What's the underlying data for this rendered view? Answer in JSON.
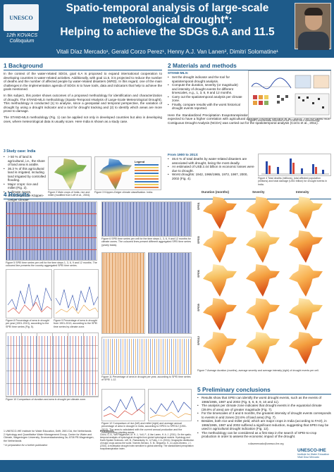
{
  "header": {
    "logo_text": "UNESCO",
    "colloquium": "12th KOVACS Colloquium",
    "title_line1": "Spatio-temporal analysis of large-scale",
    "title_line2": "meteorological drought*:",
    "title_line3": "Helping to achieve the SDGs 6.A and 11.5",
    "authors": "Vitali Díaz Mercado¹, Gerald Corzo Perez¹, Henny A.J. Van Lanen², Dimitri Solomatine¹"
  },
  "background": {
    "heading": "1 Background",
    "p1": "In the context of the water-related SDGs, goal 6.A is proposed to expand international cooperation to developing countries in water-related activities. Additionally, with goal 11.5, it is projected to reduce the number of deaths and the number of affected people by water-related disasters (WRD). In this regard, one of the main challenges in the implementation agenda of SDGs is to have tools, data and indicators that help to achieve the goals mentioned.",
    "p2": "In this subject, this poster shows outcomes of a proposed methodology for identification and characterization of drought. The STAND-MLS methodology (Spatio-Temporal ANalysis of Large-Scale Meteorological Drought). This methodology is conducted (1) to analyse, since a geospatial and temporal perspective, the variation of drought by using a drought indicator and a tool for drought tracking and (2) to identify which areas are more prone to damage.",
    "p3": "The STAND-MLS methodology (Fig. 1) can be applied not only in developed countries but also in developing ones, where meteorological data is usually scare. Here India is shown as a study case."
  },
  "study_case": {
    "heading": "3 Study case: India",
    "bullets": [
      "> 50 % of land is agricultural, i.e., the share of land area is arable.",
      "36.3 % of this agricultural land is irrigated, including land irrigated by controlled flooding.",
      "Major crops: rice and millet (Fig. 2).",
      "5 climate zones, according to the Köppen-Geiger climate classification (Fig. 3)."
    ],
    "fig2_cap": "Figure 2 Main crops of India, rice and millet (modified from Leff et al., 2004).",
    "fig3_cap": "Figure 3 Köppen-Geiger climate classification. India.",
    "legend_title": "Legend"
  },
  "methods": {
    "heading": "2 Materials and methods",
    "stand_label": "STAND-MLS:",
    "bullets": [
      "Set the drought indicator and the tool for spatiotemporal drought analysis.",
      "Compute the duration, severity (or magnitude) and intensity of drought events for different timescales, e.g., 1, 3, 6, 9 and 12 months.",
      "Carry out the spatiotemporal analysis per climate zone.",
      "Finally, compare results with the worst historical drought events reported."
    ],
    "fig1_cap": "Figure 1 A schematic overview of the STAND-MLS methodology.",
    "para": "Here the Standardized Precipitation Evapotranspiration Index (SPEI) was used as drought indicator since it is expected to have a higher correlation with agricultural damage (Vicente-Serrano et al., 2010). The so-called Non-Contiguous Drought Analysis (NCDA) was carried out for the spatiotemporal analysis (Corzo et al., 2011).",
    "from_heading": "From 1900 to 2013:",
    "from_bullets": [
      "46.6 % of total deaths by water-related disasters are associated with drought, being the most deadly.",
      "An estimated of US$ 2.44 billion in economic losses were due to drought.",
      "Worst droughts: 1942, 1966/1965, 1972, 1987, 2000, 2002 (Fig. 4)."
    ],
    "fig4_cap": "Figure 4 Total deaths (millions), total affected population (millions) and total damage (USD billion) for drought events in India."
  },
  "results": {
    "heading": "4 Results",
    "col_duration": "Duration (months)",
    "col_severity": "Severity",
    "col_intensity": "Intensity",
    "rows": [
      "SPEI1",
      "SPEI3",
      "SPEI6",
      "SPEI9",
      "SPEI12"
    ],
    "fig5_cap": "Figure 5 SPEI time series per cell for the time steps 1, 3, 6, 9 and 12 months. The coloured line presents the country aggregated SPEI time series.",
    "fig6_cap": "Figure 6 SPEI time series per cell for the time steps 1, 3, 6, 9 and 12 months for climate zones. The coloured lines present different aggregated SPEI time series (yearly basis).",
    "fig7_cap": "Figure 7 Average duration (months), average severity and average intensity (right) of drought events per cell.",
    "fig8_cap": "Figure 8 Percentage of area in drought per year (1901-2013), according to the SPEI time series (Fig. 5).",
    "fig9_cap": "Figure 9 Percentage of area in drought from 1901-2013, according to the SPEI time series by climate zone.",
    "fig10_cap": "Figure 10 Comparison of duration and area in drought per climate zone.",
    "fig11_cap": "Figure 11 Percentage of area in drought per year, according to SPEI time series of SPEI 1-12.",
    "fig12_cap": "Figure 12 Comparison of rice (left) and millet (right) and average annual percentage of area in drought in India, according to SPEI1 to SPEI12 (1901-2013). The area is calculated with the current annual production and the corresponding planting areas."
  },
  "conclusions": {
    "heading": "5 Preliminary conclusions",
    "bullets": [
      "Results show that SPEI can identify the worst drought events, such as the events of 1966/1965, 1987 and 2002 (Fig. 5, 6, 8, 9, 10 and 11).",
      "The analysis per climate zone indicates that drought events in the equatorial climate (39.9% of area) are of greater magnitude (Fig. 7).",
      "For the timescales of 3 and 6 months, the greatest intensity of drought events corresponds to events in arid zones (22.6% of land area) (Fig. 7).",
      "Besides, both rice and millet yield, which are major crops in India (according to FAO), in 1966/1965, 1987 and 2002 suffered a significant reduction, suggesting that SPEI may be used in agricultural drought indication (Fig. 12).",
      "The methodology can be considered as a first step in the search of SPEI-to-crop production in order to assess the economic impact of the drought."
    ]
  },
  "footer": {
    "affil1": "1 UNESCO-IHE Institute for Water Education, Delft, 2601 DA, the Netherlands",
    "affil2": "2 Hydrology and Quantitative Water Management Group, Centre for Water and Climate, Wageningen University, Droevendaalsesteeg 3a, 6708 PB Wageningen, the Netherlands",
    "note": "* In preparation for a further publication",
    "refs_heading": "References",
    "refs": "Corzo, G. A., Van Huijgevoort, M. H. J., Voß, F., & Van Lanen, H. A. J. (2011). On the spatio-temporal analysis of hydrological droughts from global hydrological models. Hydrology and Earth System Sciences. Leff, B., Ramankutty, N., & Foley, J. A. (2004). Geographic distribution of major crops across the world. Vicente-Serrano, S. M., Beguería, S., & López-Moreno, J. I. (2010). A multiscalar drought index sensitive to global warming: The standardized precipitation evapotranspiration index.",
    "contact": "v.diazmercado@unesco-ihe.org",
    "ihe_name": "UNESCO-IHE",
    "ihe_sub": "Institute for Water Education",
    "ihe_sub2": "Vitali Díaz Mercado"
  }
}
